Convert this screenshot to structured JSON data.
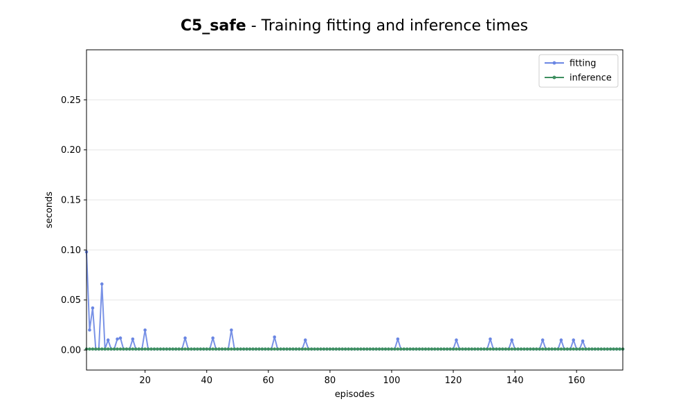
{
  "chart_data": {
    "type": "line",
    "title_bold": "C5_safe",
    "title_rest": " - Training fitting and inference times",
    "xlabel": "episodes",
    "ylabel": "seconds",
    "xlim": [
      1,
      175
    ],
    "ylim": [
      -0.02,
      0.3
    ],
    "xticks": [
      20,
      40,
      60,
      80,
      100,
      120,
      140,
      160
    ],
    "yticks": [
      0.0,
      0.05,
      0.1,
      0.15,
      0.2,
      0.25
    ],
    "ytick_labels": [
      "0.00",
      "0.05",
      "0.10",
      "0.15",
      "0.20",
      "0.25"
    ],
    "grid": "horizontal",
    "legend_position": "top-right",
    "series": [
      {
        "name": "fitting",
        "color": "#6a86e3",
        "baseline": 0.001,
        "x": [
          1,
          2,
          3,
          4,
          5,
          6,
          7,
          8,
          9,
          10,
          11,
          12,
          13,
          14,
          15,
          16,
          17,
          18,
          19,
          20,
          21,
          33,
          34,
          41,
          42,
          43,
          47,
          48,
          49,
          61,
          62,
          63,
          71,
          72,
          73,
          101,
          102,
          103,
          120,
          121,
          122,
          131,
          132,
          133,
          138,
          139,
          140,
          148,
          149,
          150,
          154,
          155,
          156,
          158,
          159,
          160,
          161,
          162,
          163
        ],
        "y": [
          0.098,
          0.02,
          0.042,
          0.001,
          0.001,
          0.066,
          0.001,
          0.01,
          0.001,
          0.001,
          0.011,
          0.012,
          0.001,
          0.001,
          0.001,
          0.011,
          0.001,
          0.001,
          0.001,
          0.02,
          0.001,
          0.012,
          0.001,
          0.001,
          0.012,
          0.001,
          0.001,
          0.02,
          0.001,
          0.001,
          0.013,
          0.001,
          0.001,
          0.01,
          0.001,
          0.001,
          0.011,
          0.001,
          0.001,
          0.01,
          0.001,
          0.001,
          0.011,
          0.001,
          0.001,
          0.01,
          0.001,
          0.001,
          0.01,
          0.001,
          0.001,
          0.01,
          0.001,
          0.001,
          0.01,
          0.001,
          0.001,
          0.009,
          0.001
        ]
      },
      {
        "name": "inference",
        "color": "#3d8f5f",
        "baseline": 0.001,
        "x": [],
        "y": []
      }
    ]
  }
}
